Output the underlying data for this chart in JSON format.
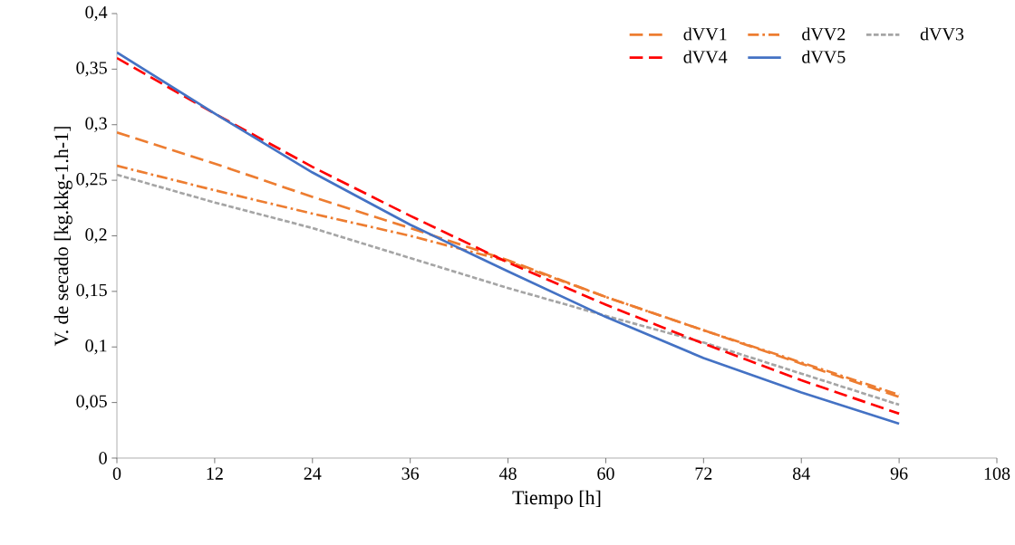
{
  "chart_data": {
    "type": "line",
    "xlabel": "Tiempo [h]",
    "ylabel": "V. de secado [kg.kkg-1.h-1]",
    "x": [
      0,
      12,
      24,
      36,
      48,
      60,
      72,
      84,
      96
    ],
    "series": [
      {
        "name": "dVV1",
        "color": "#ed7d31",
        "line_style": "longdash",
        "values": [
          0.293,
          0.265,
          0.235,
          0.207,
          0.178,
          0.145,
          0.115,
          0.085,
          0.055
        ]
      },
      {
        "name": "dVV2",
        "color": "#ed7d31",
        "line_style": "dashdot",
        "values": [
          0.263,
          0.241,
          0.22,
          0.2,
          0.177,
          0.145,
          0.115,
          0.086,
          0.057
        ]
      },
      {
        "name": "dVV3",
        "color": "#a5a5a5",
        "line_style": "dashed",
        "values": [
          0.255,
          0.23,
          0.207,
          0.18,
          0.153,
          0.128,
          0.104,
          0.076,
          0.048
        ]
      },
      {
        "name": "dVV4",
        "color": "#ff0000",
        "line_style": "longdash",
        "values": [
          0.36,
          0.31,
          0.262,
          0.218,
          0.176,
          0.138,
          0.103,
          0.07,
          0.04
        ]
      },
      {
        "name": "dVV5",
        "color": "#4472c4",
        "line_style": "solid",
        "values": [
          0.365,
          0.31,
          0.257,
          0.21,
          0.168,
          0.127,
          0.09,
          0.059,
          0.031
        ]
      }
    ],
    "xlim": [
      0,
      108
    ],
    "xticks": [
      0,
      12,
      24,
      36,
      48,
      60,
      72,
      84,
      96,
      108
    ],
    "ylim": [
      0,
      0.4
    ],
    "yticks": [
      0,
      {
        "value": 0.05,
        "label": "0,05"
      },
      {
        "value": 0.1,
        "label": "0,1"
      },
      {
        "value": 0.15,
        "label": "0,15"
      },
      {
        "value": 0.2,
        "label": "0,2"
      },
      {
        "value": 0.25,
        "label": "0,25"
      },
      {
        "value": 0.3,
        "label": "0,3"
      },
      {
        "value": 0.35,
        "label": "0,35"
      },
      {
        "value": 0.4,
        "label": "0,4"
      }
    ],
    "legend": "top right",
    "grid": false,
    "marker": "none"
  }
}
